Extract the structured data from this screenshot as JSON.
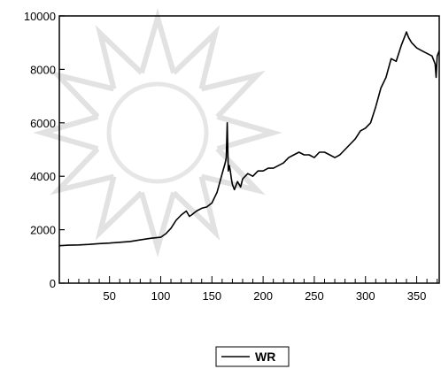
{
  "chart_data": {
    "type": "line",
    "title": "",
    "xlabel": "",
    "ylabel": "",
    "xlim": [
      1,
      372
    ],
    "ylim": [
      0,
      10000
    ],
    "x_ticks_major": [
      50,
      100,
      150,
      200,
      250,
      300,
      350
    ],
    "x_ticks_minor_step": 10,
    "y_ticks": [
      0,
      2000,
      4000,
      6000,
      8000,
      10000
    ],
    "grid": false,
    "legend_position": "bottom-center",
    "series": [
      {
        "name": "WR",
        "color": "#000000",
        "x": [
          1,
          10,
          20,
          30,
          40,
          50,
          60,
          70,
          80,
          90,
          100,
          105,
          110,
          115,
          120,
          125,
          128,
          130,
          135,
          140,
          145,
          150,
          155,
          160,
          163,
          164,
          165,
          166,
          167,
          168,
          169,
          170,
          172,
          175,
          178,
          180,
          185,
          190,
          195,
          200,
          205,
          210,
          215,
          220,
          225,
          230,
          235,
          240,
          245,
          250,
          255,
          260,
          265,
          270,
          275,
          280,
          285,
          290,
          295,
          300,
          305,
          310,
          315,
          320,
          325,
          330,
          335,
          338,
          340,
          342,
          345,
          350,
          355,
          360,
          365,
          368,
          369,
          370,
          372
        ],
        "y": [
          1400,
          1420,
          1430,
          1450,
          1480,
          1500,
          1530,
          1560,
          1620,
          1680,
          1720,
          1850,
          2050,
          2350,
          2550,
          2700,
          2500,
          2550,
          2700,
          2800,
          2850,
          3000,
          3400,
          4100,
          4500,
          4700,
          6000,
          4200,
          4400,
          4200,
          3900,
          3700,
          3500,
          3800,
          3600,
          3900,
          4100,
          4000,
          4200,
          4200,
          4300,
          4300,
          4400,
          4500,
          4700,
          4800,
          4900,
          4800,
          4800,
          4700,
          4900,
          4900,
          4800,
          4700,
          4800,
          5000,
          5200,
          5400,
          5700,
          5800,
          6000,
          6600,
          7300,
          7700,
          8400,
          8300,
          8900,
          9200,
          9400,
          9200,
          9000,
          8800,
          8700,
          8600,
          8500,
          8200,
          7700,
          8500,
          8700
        ]
      }
    ]
  }
}
